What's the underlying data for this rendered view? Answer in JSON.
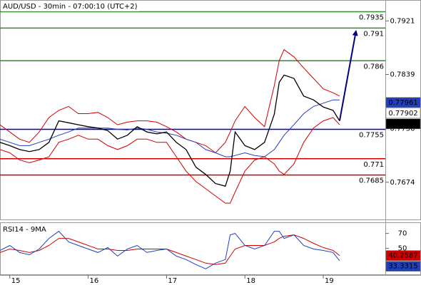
{
  "chart_data": [
    {
      "type": "line",
      "title": "AUD/USD - 30min - 07:00:10 (UTC+2)",
      "x": [
        -3,
        0,
        3,
        6,
        9,
        12,
        15,
        18,
        21,
        24,
        27,
        30,
        33,
        36,
        39,
        42,
        45,
        48,
        51,
        54,
        57,
        60,
        63,
        66,
        67.5,
        69,
        72,
        75,
        78,
        81,
        82.5,
        84,
        87,
        90,
        93,
        96,
        99,
        101
      ],
      "xlim": [
        -3,
        115
      ],
      "xticks": [
        {
          "value": 0,
          "label": "15"
        },
        {
          "value": 24,
          "label": "16"
        },
        {
          "value": 48,
          "label": "17"
        },
        {
          "value": 72,
          "label": "18"
        },
        {
          "value": 96,
          "label": "19"
        }
      ],
      "ylim": [
        0.7617,
        0.7953
      ],
      "yticks": [
        0.7674,
        0.7756,
        0.7839,
        0.7921
      ],
      "series": [
        {
          "color": "#d00000",
          "values": [
            0.7762,
            0.7751,
            0.774,
            0.7735,
            0.7751,
            0.7773,
            0.7784,
            0.779,
            0.7779,
            0.7779,
            0.7781,
            0.7773,
            0.7762,
            0.7766,
            0.7768,
            0.7768,
            0.7766,
            0.7759,
            0.7751,
            0.774,
            0.7735,
            0.773,
            0.7719,
            0.7735,
            0.7751,
            0.7768,
            0.779,
            0.7773,
            0.7759,
            0.7822,
            0.786,
            0.7877,
            0.7866,
            0.7849,
            0.7833,
            0.7817,
            0.7811,
            0.7806
          ]
        },
        {
          "color": "#d00000",
          "values": [
            0.7724,
            0.7719,
            0.7708,
            0.7704,
            0.7708,
            0.7713,
            0.7735,
            0.774,
            0.7746,
            0.774,
            0.774,
            0.773,
            0.7724,
            0.773,
            0.774,
            0.774,
            0.7735,
            0.7735,
            0.7713,
            0.7691,
            0.7675,
            0.7664,
            0.7653,
            0.7642,
            0.7642,
            0.7659,
            0.7691,
            0.7708,
            0.7713,
            0.7702,
            0.7691,
            0.7686,
            0.7702,
            0.7735,
            0.7757,
            0.7768,
            0.7773,
            0.7762
          ]
        },
        {
          "color": "#1f3fbf",
          "values": [
            0.774,
            0.7735,
            0.773,
            0.773,
            0.7735,
            0.774,
            0.7746,
            0.7751,
            0.7757,
            0.7757,
            0.7757,
            0.7757,
            0.7755,
            0.7754,
            0.7757,
            0.7755,
            0.7751,
            0.7749,
            0.7746,
            0.774,
            0.7735,
            0.7724,
            0.7719,
            0.7713,
            0.7713,
            0.7715,
            0.7719,
            0.7715,
            0.7713,
            0.7724,
            0.7735,
            0.7746,
            0.7762,
            0.7779,
            0.779,
            0.7795,
            0.78,
            0.78
          ]
        },
        {
          "color": "#000000",
          "values": [
            0.7735,
            0.773,
            0.7724,
            0.7721,
            0.7724,
            0.7735,
            0.7768,
            0.7765,
            0.7762,
            0.7759,
            0.7757,
            0.7753,
            0.774,
            0.7746,
            0.7759,
            0.7751,
            0.7748,
            0.7751,
            0.7735,
            0.7724,
            0.7697,
            0.7686,
            0.7672,
            0.7668,
            0.7691,
            0.7751,
            0.773,
            0.7724,
            0.7735,
            0.7778,
            0.7827,
            0.7838,
            0.7833,
            0.7806,
            0.78,
            0.7789,
            0.7784,
            0.7768
          ]
        }
      ],
      "levels": [
        {
          "value": 0.7935,
          "color": "#2e8b2e"
        },
        {
          "value": 0.791,
          "color": "#2e8b2e"
        },
        {
          "value": 0.786,
          "color": "#2e8b2e"
        },
        {
          "value": 0.7755,
          "color": "#0000cc"
        },
        {
          "value": 0.771,
          "color": "#cc0000"
        },
        {
          "value": 0.7685,
          "color": "#cc0000"
        }
      ],
      "badges": [
        {
          "value": 0.77961,
          "color": "#1f3fbf",
          "text_color": "#ffffff"
        },
        {
          "value": 0.77902,
          "color": "#ffffff",
          "text_color": "#000000"
        },
        {
          "value": 0.77679,
          "color": "#000000",
          "text_color": "#ffffff"
        }
      ],
      "forecast": {
        "color": "#000080",
        "x": [
          101,
          106
        ],
        "y": [
          0.7768,
          0.7905
        ]
      }
    },
    {
      "type": "line",
      "title": "RSI14 - 9MA",
      "ylim": [
        15,
        84
      ],
      "yticks": [
        50,
        70
      ],
      "series": [
        {
          "color": "#d00000",
          "values": [
            44.3,
            49.0,
            47.1,
            44.3,
            47.1,
            53.8,
            63.3,
            63.3,
            58.6,
            53.8,
            49.0,
            49.0,
            47.1,
            47.1,
            49.0,
            49.0,
            49.0,
            49.0,
            44.3,
            39.5,
            34.8,
            30.0,
            28.1,
            30.0,
            39.5,
            49.0,
            53.8,
            53.8,
            53.8,
            58.6,
            63.3,
            66.2,
            68.1,
            63.3,
            56.7,
            51.0,
            47.1,
            40.3
          ]
        },
        {
          "color": "#1f3fbf",
          "values": [
            47.1,
            53.8,
            44.3,
            41.4,
            49.0,
            63.3,
            72.9,
            58.6,
            53.8,
            49.0,
            44.3,
            51.0,
            39.5,
            49.0,
            53.8,
            44.3,
            47.1,
            49.0,
            39.5,
            34.8,
            28.1,
            22.4,
            30.0,
            34.8,
            68.1,
            70.0,
            53.8,
            49.0,
            53.8,
            72.9,
            72.9,
            63.3,
            68.1,
            53.8,
            49.0,
            47.1,
            44.3,
            33.3
          ]
        }
      ],
      "badges": [
        {
          "value": 40.2587,
          "color": "#d00000",
          "text_color": "#ffffff"
        },
        {
          "value": 33.3315,
          "color": "#1f3fbf",
          "text_color": "#ffffff"
        }
      ]
    }
  ]
}
